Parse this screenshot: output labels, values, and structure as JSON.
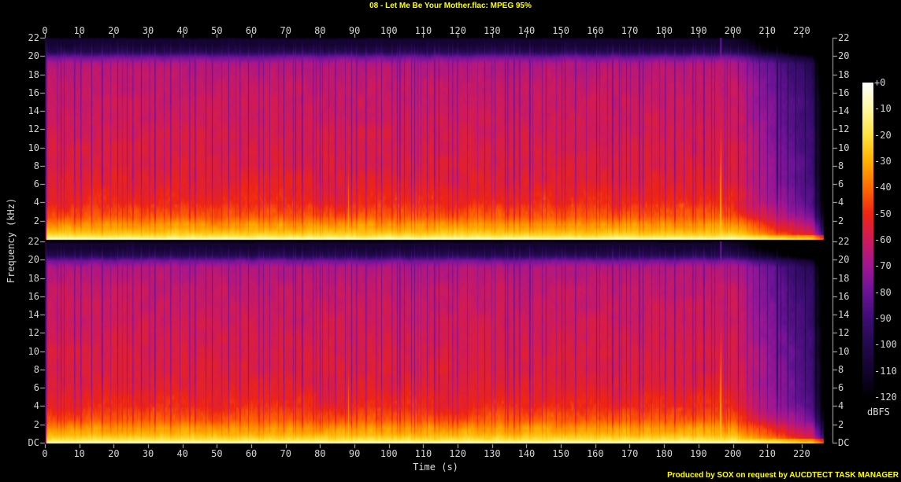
{
  "page": {
    "footer_credit": "Produced by SOX on request by AUCDTECT TASK MANAGER"
  },
  "chart_data": {
    "type": "heatmap",
    "subtype": "audio_spectrogram_stereo_sox",
    "title": "08 - Let Me Be Your Mother.flac: MPEG 95%",
    "xlabel": "Time (s)",
    "ylabel": "Frequency (kHz)",
    "colorbar_label": "dBFS",
    "grid": false,
    "legend_position": "right",
    "x_tick_labels": [
      "0",
      "10",
      "20",
      "30",
      "40",
      "50",
      "60",
      "70",
      "80",
      "90",
      "100",
      "110",
      "120",
      "130",
      "140",
      "150",
      "160",
      "170",
      "180",
      "190",
      "200",
      "210",
      "220"
    ],
    "x_tick_s": [
      0,
      10,
      20,
      30,
      40,
      50,
      60,
      70,
      80,
      90,
      100,
      110,
      120,
      130,
      140,
      150,
      160,
      170,
      180,
      190,
      200,
      210,
      220
    ],
    "x_max_s": 226.9,
    "freq_range_khz": [
      0,
      22
    ],
    "panels": [
      {
        "name": "channel-1",
        "y_tick_labels": [
          "22",
          "20",
          "18",
          "16",
          "14",
          "12",
          "10",
          "8",
          "6",
          "4",
          "2"
        ],
        "y_tick_khz": [
          22,
          20,
          18,
          16,
          14,
          12,
          10,
          8,
          6,
          4,
          2
        ]
      },
      {
        "name": "channel-2",
        "y_tick_labels": [
          "22",
          "20",
          "18",
          "16",
          "14",
          "12",
          "10",
          "8",
          "6",
          "4",
          "2",
          "DC"
        ],
        "y_tick_khz": [
          22,
          20,
          18,
          16,
          14,
          12,
          10,
          8,
          6,
          4,
          2,
          0
        ]
      }
    ],
    "colorbar_tick_labels": [
      "+0",
      "-10",
      "-20",
      "-30",
      "-40",
      "-50",
      "-60",
      "-70",
      "-80",
      "-90",
      "-100",
      "-110",
      "-120"
    ],
    "colorbar_tick_db": [
      0,
      -10,
      -20,
      -30,
      -40,
      -50,
      -60,
      -70,
      -80,
      -90,
      -100,
      -110,
      -120
    ],
    "colorbar_range_db": [
      0,
      -120
    ],
    "colormap_stops": [
      {
        "db": -120,
        "color": "#000000"
      },
      {
        "db": -110,
        "color": "#140430"
      },
      {
        "db": -100,
        "color": "#23094e"
      },
      {
        "db": -90,
        "color": "#3e0d74"
      },
      {
        "db": -80,
        "color": "#6b1396"
      },
      {
        "db": -70,
        "color": "#a01693"
      },
      {
        "db": -60,
        "color": "#ce1a5c"
      },
      {
        "db": -50,
        "color": "#ee2512"
      },
      {
        "db": -40,
        "color": "#ff6b00"
      },
      {
        "db": -30,
        "color": "#ffb000"
      },
      {
        "db": -20,
        "color": "#ffe23c"
      },
      {
        "db": -10,
        "color": "#fff9a0"
      },
      {
        "db": 0,
        "color": "#ffffff"
      }
    ],
    "spectral_profile_db_by_khz": [
      [
        0,
        -4
      ],
      [
        0.12,
        -7
      ],
      [
        0.4,
        -16
      ],
      [
        0.9,
        -24
      ],
      [
        1.6,
        -30
      ],
      [
        2.5,
        -40
      ],
      [
        4,
        -48
      ],
      [
        6,
        -51
      ],
      [
        9,
        -52
      ],
      [
        13,
        -55
      ],
      [
        17,
        -58
      ],
      [
        19.2,
        -62
      ],
      [
        19.9,
        -74
      ],
      [
        20.5,
        -95
      ],
      [
        21.2,
        -104
      ],
      [
        22,
        -110
      ]
    ],
    "features": {
      "lowpass_cutoff_khz": 20.3,
      "beat_streak_level_db": -84,
      "mid_energy_sections_s": [
        [
          12,
          27
        ],
        [
          30,
          47
        ],
        [
          52,
          78
        ],
        [
          90,
          113
        ],
        [
          124,
          164
        ],
        [
          168,
          199
        ]
      ],
      "strong_transients": [
        {
          "t_s": 88.2,
          "peak_db": -20,
          "slope_db_per_khz": 3.8,
          "sd_s": 0.4
        },
        {
          "t_s": 196.4,
          "peak_db": -14,
          "slope_db_per_khz": 2.9,
          "sd_s": 0.5
        }
      ],
      "start_silence_s": 0.45,
      "fade_out_start_s": 200
    }
  }
}
